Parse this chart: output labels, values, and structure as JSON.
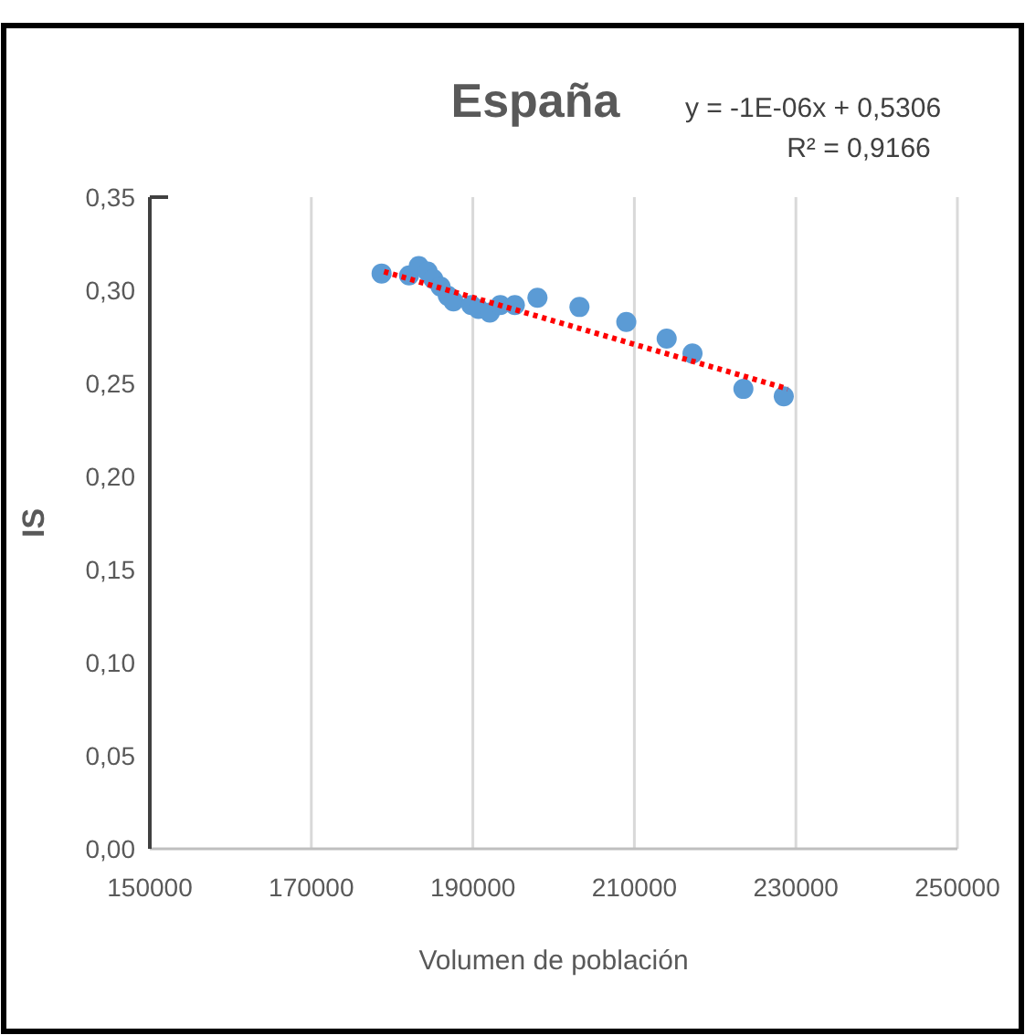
{
  "chart_data": {
    "type": "scatter",
    "title": "España",
    "xlabel": "Volumen de población",
    "ylabel": "IS",
    "annotations": [
      "y = -1E-06x + 0,5306",
      "R² = 0,9166"
    ],
    "xlim": [
      150000,
      250000
    ],
    "xticks": [
      150000,
      170000,
      190000,
      210000,
      230000,
      250000
    ],
    "ylim": [
      0,
      0.35
    ],
    "yticks": [
      {
        "value": 0,
        "label": "0,00"
      },
      {
        "value": 0.05,
        "label": "0,05"
      },
      {
        "value": 0.1,
        "label": "0,10"
      },
      {
        "value": 0.15,
        "label": "0,15"
      },
      {
        "value": 0.2,
        "label": "0,20"
      },
      {
        "value": 0.25,
        "label": "0,25"
      },
      {
        "value": 0.3,
        "label": "0,30"
      },
      {
        "value": 0.35,
        "label": "0,35"
      }
    ],
    "grid": "x",
    "series": [
      {
        "color": "#5b9bd5",
        "marker": "circle",
        "x": [
          178700,
          182100,
          183300,
          184400,
          185100,
          186000,
          186900,
          187600,
          189800,
          190700,
          192100,
          193400,
          195200,
          198000,
          203200,
          209000,
          214000,
          217200,
          223500,
          228500
        ],
        "values": [
          0.309,
          0.308,
          0.313,
          0.31,
          0.306,
          0.302,
          0.297,
          0.294,
          0.292,
          0.29,
          0.288,
          0.292,
          0.292,
          0.296,
          0.291,
          0.283,
          0.274,
          0.266,
          0.247,
          0.243
        ]
      },
      {
        "type": "line",
        "color": "#ff0000",
        "line_style": "dotted",
        "x": [
          179000,
          229000
        ],
        "values": [
          0.31,
          0.247
        ]
      }
    ]
  }
}
